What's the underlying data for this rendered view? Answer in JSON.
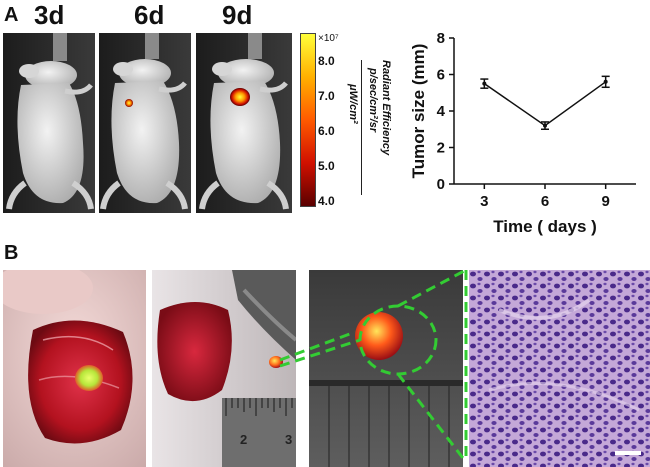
{
  "panels": {
    "a_label": "A",
    "b_label": "B"
  },
  "imaging": {
    "days": [
      "3d",
      "6d",
      "9d"
    ],
    "colorbar": {
      "exponent_label": "×10⁷",
      "ticks": [
        "8.0",
        "7.0",
        "6.0",
        "5.0",
        "4.0"
      ],
      "title_lines": [
        "Radiant Efficiency",
        "p/sec/cm²/sr",
        "μW/cm²"
      ],
      "colors": [
        "#ffff3a",
        "#ffb000",
        "#ff5a00",
        "#d01000",
        "#5a0000"
      ]
    }
  },
  "ruler": {
    "numbers": [
      "2",
      "3"
    ]
  },
  "chart_data": {
    "type": "line",
    "x": [
      3,
      6,
      9
    ],
    "values": [
      5.5,
      3.2,
      5.6
    ],
    "errors": [
      0.25,
      0.2,
      0.3
    ],
    "xlabel": "Time ( days )",
    "ylabel": "Tumor size (mm)",
    "xticks": [
      3,
      6,
      9
    ],
    "yticks": [
      0,
      2,
      4,
      6,
      8
    ],
    "xlim": [
      1.5,
      10.5
    ],
    "ylim": [
      0,
      8
    ],
    "grid": false,
    "color": "#111111"
  },
  "colors": {
    "guide_line": "#33cc33",
    "tissue": "#c8142a",
    "fluorescence": "#c6f53a"
  }
}
